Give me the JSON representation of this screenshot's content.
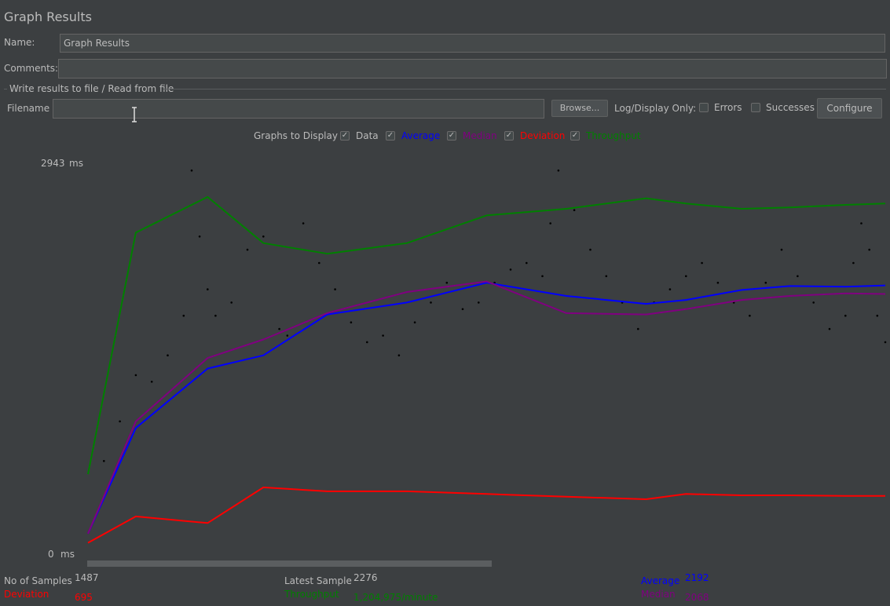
{
  "window": {
    "title": "Graph Results"
  },
  "form": {
    "name_label": "Name:",
    "name_value": "Graph Results",
    "comments_label": "Comments:",
    "comments_value": ""
  },
  "file_group": {
    "title": "Write results to file / Read from file",
    "filename_label": "Filename",
    "filename_value": "",
    "browse_label": "Browse...",
    "log_display_label": "Log/Display Only:",
    "errors_label": "Errors",
    "errors_checked": false,
    "successes_label": "Successes",
    "successes_checked": false,
    "configure_label": "Configure"
  },
  "graphs_to_display": {
    "label": "Graphs to Display",
    "check_mark": "✓",
    "items": [
      {
        "label": "Data",
        "color": "#bbbbbb",
        "checked": true
      },
      {
        "label": "Average",
        "color": "#0000ff",
        "checked": true
      },
      {
        "label": "Median",
        "color": "#800080",
        "checked": true
      },
      {
        "label": "Deviation",
        "color": "#ff0000",
        "checked": true
      },
      {
        "label": "Throughput",
        "color": "#008000",
        "checked": true
      }
    ]
  },
  "axis": {
    "max_value": "2943",
    "min_value": "0",
    "unit": "ms"
  },
  "colors": {
    "background": "#3c3f41",
    "data": "#000000",
    "average": "#0000ff",
    "median": "#800080",
    "deviation": "#ff0000",
    "throughput": "#008000"
  },
  "stats": {
    "samples_label": "No of Samples",
    "samples_value": "1487",
    "latest_label": "Latest Sample",
    "latest_value": "2276",
    "average_label": "Average",
    "average_value": "2192",
    "deviation_label": "Deviation",
    "deviation_value": "695",
    "throughput_label": "Throughput",
    "throughput_value": "1,204,975/minute",
    "median_label": "Median",
    "median_value": "2068"
  },
  "chart_data": {
    "type": "line",
    "ylim": [
      0,
      2943
    ],
    "yunit": "ms",
    "x": [
      0,
      6,
      15,
      22,
      30,
      40,
      50,
      60,
      70,
      75,
      82,
      88,
      95,
      100
    ],
    "series": [
      {
        "name": "Average",
        "color": "#0000ff",
        "values": [
          150,
          950,
          1400,
          1500,
          1810,
          1900,
          2050,
          1950,
          1890,
          1920,
          1995,
          2025,
          2020,
          2030
        ]
      },
      {
        "name": "Median",
        "color": "#800080",
        "values": [
          150,
          1000,
          1480,
          1620,
          1820,
          1980,
          2060,
          1820,
          1810,
          1850,
          1920,
          1950,
          1970,
          1965
        ]
      },
      {
        "name": "Deviation",
        "color": "#ff0000",
        "values": [
          80,
          280,
          230,
          500,
          470,
          470,
          450,
          430,
          410,
          450,
          440,
          440,
          435,
          435
        ]
      },
      {
        "name": "Throughput",
        "color": "#008000",
        "values": [
          600,
          2430,
          2700,
          2350,
          2270,
          2350,
          2560,
          2610,
          2690,
          2650,
          2610,
          2620,
          2640,
          2650
        ]
      }
    ],
    "data_points": [
      [
        2,
        700
      ],
      [
        4,
        1000
      ],
      [
        6,
        1350
      ],
      [
        8,
        1300
      ],
      [
        10,
        1500
      ],
      [
        12,
        1800
      ],
      [
        13,
        2900
      ],
      [
        14,
        2400
      ],
      [
        15,
        2000
      ],
      [
        16,
        1800
      ],
      [
        18,
        1900
      ],
      [
        20,
        2300
      ],
      [
        22,
        2400
      ],
      [
        24,
        1700
      ],
      [
        25,
        1650
      ],
      [
        27,
        2500
      ],
      [
        29,
        2200
      ],
      [
        31,
        2000
      ],
      [
        33,
        1750
      ],
      [
        35,
        1600
      ],
      [
        37,
        1650
      ],
      [
        39,
        1500
      ],
      [
        41,
        1750
      ],
      [
        43,
        1900
      ],
      [
        45,
        2050
      ],
      [
        47,
        1850
      ],
      [
        49,
        1900
      ],
      [
        51,
        2050
      ],
      [
        53,
        2150
      ],
      [
        55,
        2200
      ],
      [
        57,
        2100
      ],
      [
        58,
        2500
      ],
      [
        59,
        2900
      ],
      [
        61,
        2600
      ],
      [
        63,
        2300
      ],
      [
        65,
        2100
      ],
      [
        67,
        1900
      ],
      [
        69,
        1700
      ],
      [
        71,
        1900
      ],
      [
        73,
        2000
      ],
      [
        75,
        2100
      ],
      [
        77,
        2200
      ],
      [
        79,
        2050
      ],
      [
        81,
        1900
      ],
      [
        83,
        1800
      ],
      [
        85,
        2050
      ],
      [
        87,
        2300
      ],
      [
        89,
        2100
      ],
      [
        91,
        1900
      ],
      [
        93,
        1700
      ],
      [
        95,
        1800
      ],
      [
        96,
        2200
      ],
      [
        97,
        2500
      ],
      [
        98,
        2300
      ],
      [
        99,
        1800
      ],
      [
        100,
        1600
      ]
    ]
  }
}
